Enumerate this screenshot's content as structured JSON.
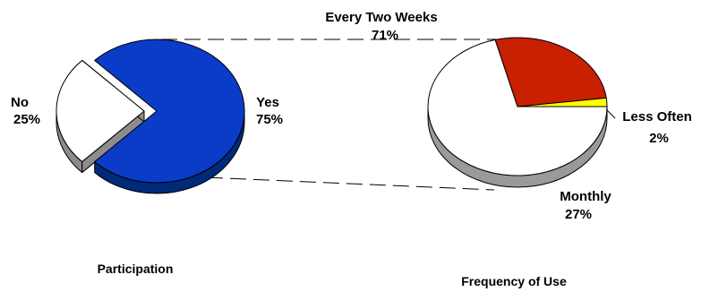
{
  "chart_data": [
    {
      "type": "pie",
      "title": "Participation",
      "slices": [
        {
          "label": "No",
          "value": 25,
          "value_label": "25%",
          "color": "#FFFFFF",
          "side_color": "#8C8C8C",
          "exploded": true
        },
        {
          "label": "Yes",
          "value": 75,
          "value_label": "75%",
          "color": "#0A3CC8",
          "side_color": "#002A7A",
          "exploded": false
        }
      ]
    },
    {
      "type": "pie",
      "title": "Frequency of Use",
      "slices": [
        {
          "label": "Every Two Weeks",
          "value": 71,
          "value_label": "71%",
          "color": "#FFFFFF",
          "side_color": "#9A9A9A"
        },
        {
          "label": "Monthly",
          "value": 27,
          "value_label": "27%",
          "color": "#C82000",
          "side_color": "#7A1400"
        },
        {
          "label": "Less Often",
          "value": 2,
          "value_label": "2%",
          "color": "#FFFF00",
          "side_color": "#A6A600"
        }
      ]
    }
  ]
}
